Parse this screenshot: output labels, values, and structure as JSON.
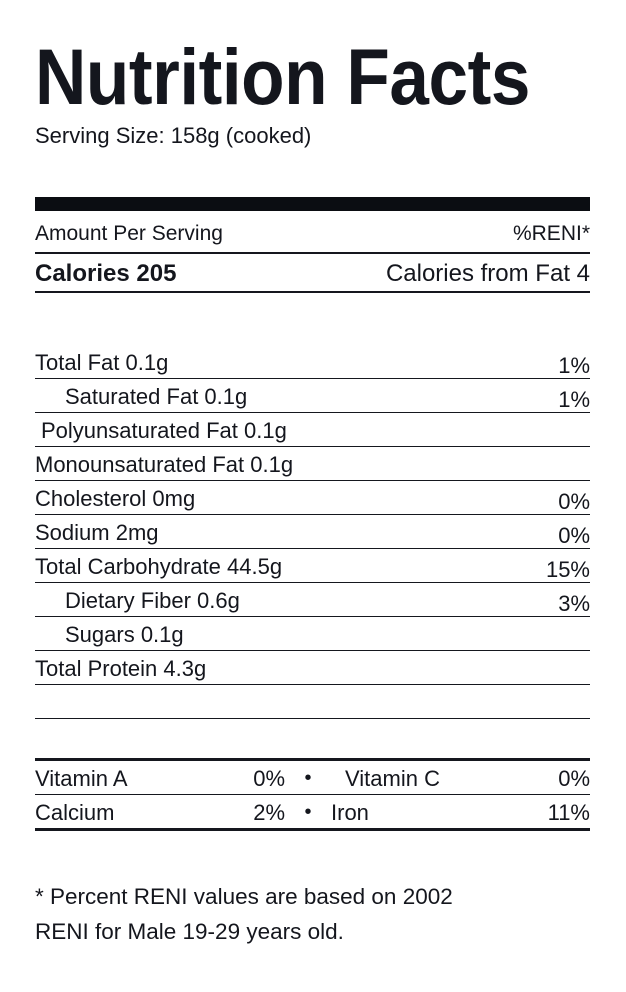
{
  "label": {
    "title": "Nutrition Facts",
    "serving_size": "Serving Size: 158g (cooked)",
    "header": {
      "amount_per_serving": "Amount Per Serving",
      "reni": "%RENI*"
    },
    "calories": {
      "label": "Calories 205",
      "from_fat": "Calories from Fat 4"
    },
    "nutrients": [
      {
        "name": "Total Fat 0.1g",
        "pct": "1%",
        "indent": 0
      },
      {
        "name": "Saturated Fat 0.1g",
        "pct": "1%",
        "indent": 1
      },
      {
        "name": "Polyunsaturated Fat 0.1g",
        "pct": "",
        "indent": 2
      },
      {
        "name": "Monounsaturated Fat 0.1g",
        "pct": "",
        "indent": 0
      },
      {
        "name": "Cholesterol 0mg",
        "pct": "0%",
        "indent": 0
      },
      {
        "name": "Sodium 2mg",
        "pct": "0%",
        "indent": 0
      },
      {
        "name": "Total Carbohydrate 44.5g",
        "pct": "15%",
        "indent": 0
      },
      {
        "name": "Dietary Fiber 0.6g",
        "pct": "3%",
        "indent": 1
      },
      {
        "name": "Sugars 0.1g",
        "pct": "",
        "indent": 1
      },
      {
        "name": "Total Protein 4.3g",
        "pct": "",
        "indent": 0
      },
      {
        "name": "",
        "pct": "",
        "indent": 0
      }
    ],
    "bullet": "•",
    "vitamins": [
      {
        "left_name": "Vitamin A",
        "left_value": "0%",
        "right_name": "Vitamin C",
        "right_value": "0%"
      },
      {
        "left_name": "Calcium",
        "left_value": "2%",
        "right_name": "Iron",
        "right_value": "11%"
      }
    ],
    "footnote_lines": [
      "* Percent RENI values are based on 2002",
      "RENI for Male 19-29 years old."
    ]
  },
  "colors": {
    "text": "#14161d",
    "rule": "#15171e",
    "bar": "#0b0d12",
    "background": "#ffffff"
  }
}
